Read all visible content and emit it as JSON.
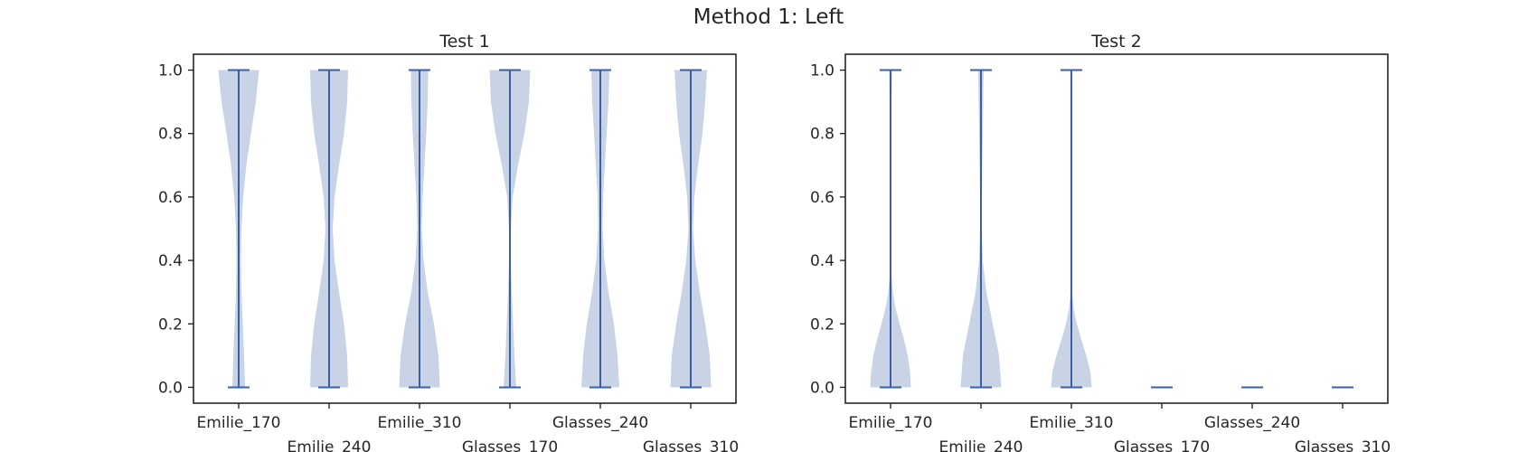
{
  "figure": {
    "suptitle": "Method 1: Left"
  },
  "style": {
    "violin_fill": "#c8d3e6",
    "line_color": "#3a5fa8",
    "axis_color": "#262626"
  },
  "chart_data": [
    {
      "type": "violin",
      "title": "Test 1",
      "xlabel": "",
      "ylabel": "",
      "ylim": [
        -0.05,
        1.05
      ],
      "yticks": [
        0.0,
        0.2,
        0.4,
        0.6,
        0.8,
        1.0
      ],
      "ytick_labels": [
        "0.0",
        "0.2",
        "0.4",
        "0.6",
        "0.8",
        "1.0"
      ],
      "categories": [
        "Emilie_170",
        "Emilie_240",
        "Emilie_310",
        "Glasses_170",
        "Glasses_240",
        "Glasses_310"
      ],
      "grid": false,
      "violins": [
        {
          "min": 0.0,
          "max": 1.0,
          "density": [
            [
              0.0,
              0.14
            ],
            [
              0.1,
              0.12
            ],
            [
              0.2,
              0.09
            ],
            [
              0.3,
              0.06
            ],
            [
              0.4,
              0.05
            ],
            [
              0.5,
              0.06
            ],
            [
              0.6,
              0.1
            ],
            [
              0.7,
              0.17
            ],
            [
              0.8,
              0.27
            ],
            [
              0.9,
              0.38
            ],
            [
              1.0,
              0.45
            ]
          ]
        },
        {
          "min": 0.0,
          "max": 1.0,
          "density": [
            [
              0.0,
              0.42
            ],
            [
              0.1,
              0.4
            ],
            [
              0.2,
              0.33
            ],
            [
              0.3,
              0.22
            ],
            [
              0.4,
              0.12
            ],
            [
              0.5,
              0.08
            ],
            [
              0.6,
              0.12
            ],
            [
              0.7,
              0.22
            ],
            [
              0.8,
              0.33
            ],
            [
              0.9,
              0.4
            ],
            [
              1.0,
              0.42
            ]
          ]
        },
        {
          "min": 0.0,
          "max": 1.0,
          "density": [
            [
              0.0,
              0.45
            ],
            [
              0.1,
              0.42
            ],
            [
              0.2,
              0.32
            ],
            [
              0.3,
              0.18
            ],
            [
              0.4,
              0.09
            ],
            [
              0.5,
              0.05
            ],
            [
              0.6,
              0.07
            ],
            [
              0.7,
              0.11
            ],
            [
              0.8,
              0.15
            ],
            [
              0.9,
              0.18
            ],
            [
              1.0,
              0.19
            ]
          ]
        },
        {
          "min": 0.0,
          "max": 1.0,
          "density": [
            [
              0.0,
              0.14
            ],
            [
              0.1,
              0.1
            ],
            [
              0.2,
              0.07
            ],
            [
              0.3,
              0.04
            ],
            [
              0.4,
              0.02
            ],
            [
              0.5,
              0.02
            ],
            [
              0.6,
              0.06
            ],
            [
              0.7,
              0.18
            ],
            [
              0.8,
              0.32
            ],
            [
              0.9,
              0.42
            ],
            [
              1.0,
              0.45
            ]
          ]
        },
        {
          "min": 0.0,
          "max": 1.0,
          "density": [
            [
              0.0,
              0.42
            ],
            [
              0.1,
              0.38
            ],
            [
              0.2,
              0.3
            ],
            [
              0.3,
              0.18
            ],
            [
              0.4,
              0.09
            ],
            [
              0.5,
              0.05
            ],
            [
              0.6,
              0.06
            ],
            [
              0.7,
              0.1
            ],
            [
              0.8,
              0.14
            ],
            [
              0.9,
              0.18
            ],
            [
              1.0,
              0.2
            ]
          ]
        },
        {
          "min": 0.0,
          "max": 1.0,
          "density": [
            [
              0.0,
              0.45
            ],
            [
              0.1,
              0.42
            ],
            [
              0.2,
              0.32
            ],
            [
              0.3,
              0.2
            ],
            [
              0.4,
              0.1
            ],
            [
              0.5,
              0.05
            ],
            [
              0.6,
              0.08
            ],
            [
              0.7,
              0.16
            ],
            [
              0.8,
              0.26
            ],
            [
              0.9,
              0.32
            ],
            [
              1.0,
              0.36
            ]
          ]
        }
      ]
    },
    {
      "type": "violin",
      "title": "Test 2",
      "xlabel": "",
      "ylabel": "",
      "ylim": [
        -0.05,
        1.05
      ],
      "yticks": [
        0.0,
        0.2,
        0.4,
        0.6,
        0.8,
        1.0
      ],
      "ytick_labels": [
        "0.0",
        "0.2",
        "0.4",
        "0.6",
        "0.8",
        "1.0"
      ],
      "categories": [
        "Emilie_170",
        "Emilie_240",
        "Emilie_310",
        "Glasses_170",
        "Glasses_240",
        "Glasses_310"
      ],
      "grid": false,
      "violins": [
        {
          "min": 0.0,
          "max": 1.0,
          "density": [
            [
              0.0,
              0.45
            ],
            [
              0.05,
              0.43
            ],
            [
              0.1,
              0.38
            ],
            [
              0.15,
              0.3
            ],
            [
              0.2,
              0.2
            ],
            [
              0.25,
              0.11
            ],
            [
              0.3,
              0.05
            ],
            [
              0.35,
              0.02
            ],
            [
              0.5,
              0.01
            ],
            [
              0.8,
              0.01
            ],
            [
              1.0,
              0.03
            ]
          ]
        },
        {
          "min": 0.0,
          "max": 1.0,
          "density": [
            [
              0.0,
              0.45
            ],
            [
              0.1,
              0.4
            ],
            [
              0.2,
              0.26
            ],
            [
              0.3,
              0.12
            ],
            [
              0.4,
              0.04
            ],
            [
              0.5,
              0.02
            ],
            [
              0.6,
              0.02
            ],
            [
              0.7,
              0.03
            ],
            [
              0.8,
              0.04
            ],
            [
              0.9,
              0.05
            ],
            [
              1.0,
              0.06
            ]
          ]
        },
        {
          "min": 0.0,
          "max": 1.0,
          "density": [
            [
              0.0,
              0.45
            ],
            [
              0.05,
              0.42
            ],
            [
              0.1,
              0.33
            ],
            [
              0.15,
              0.22
            ],
            [
              0.2,
              0.12
            ],
            [
              0.25,
              0.05
            ],
            [
              0.3,
              0.02
            ],
            [
              0.4,
              0.01
            ],
            [
              0.6,
              0.0
            ],
            [
              0.8,
              0.0
            ],
            [
              1.0,
              0.0
            ]
          ]
        },
        {
          "min": 0.0,
          "max": 0.0,
          "density": []
        },
        {
          "min": 0.0,
          "max": 0.0,
          "density": []
        },
        {
          "min": 0.0,
          "max": 0.0,
          "density": []
        }
      ]
    }
  ]
}
